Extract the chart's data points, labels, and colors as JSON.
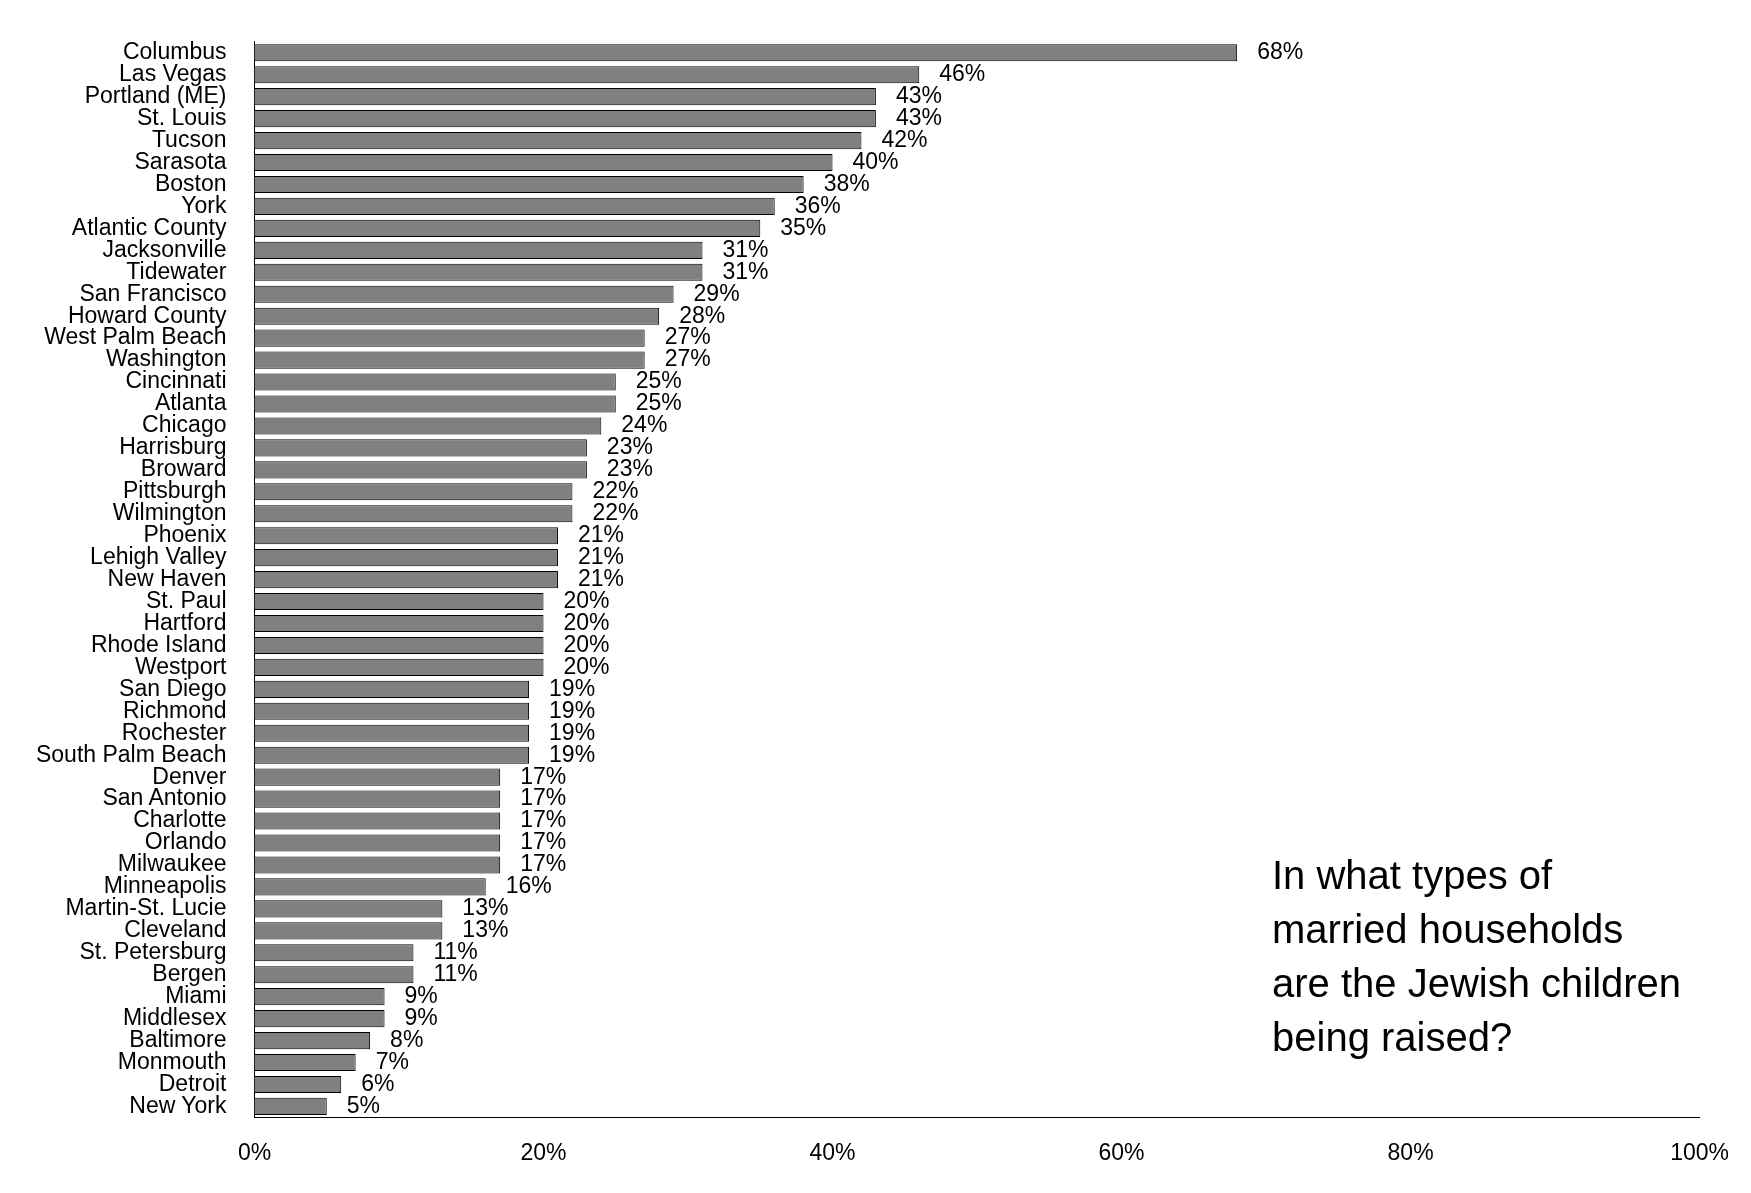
{
  "chart_data": {
    "type": "bar",
    "orientation": "horizontal",
    "title": "In what types of married households are the Jewish children being raised?",
    "categories": [
      "Columbus",
      "Las Vegas",
      "Portland (ME)",
      "St. Louis",
      "Tucson",
      "Sarasota",
      "Boston",
      "York",
      "Atlantic County",
      "Jacksonville",
      "Tidewater",
      "San Francisco",
      "Howard County",
      "West Palm Beach",
      "Washington",
      "Cincinnati",
      "Atlanta",
      "Chicago",
      "Harrisburg",
      "Broward",
      "Pittsburgh",
      "Wilmington",
      "Phoenix",
      "Lehigh Valley",
      "New Haven",
      "St. Paul",
      "Hartford",
      "Rhode Island",
      "Westport",
      "San Diego",
      "Richmond",
      "Rochester",
      "South Palm Beach",
      "Denver",
      "San Antonio",
      "Charlotte",
      "Orlando",
      "Milwaukee",
      "Minneapolis",
      "Martin-St. Lucie",
      "Cleveland",
      "St. Petersburg",
      "Bergen",
      "Miami",
      "Middlesex",
      "Baltimore",
      "Monmouth",
      "Detroit",
      "New York"
    ],
    "values": [
      68,
      46,
      43,
      43,
      42,
      40,
      38,
      36,
      35,
      31,
      31,
      29,
      28,
      27,
      27,
      25,
      25,
      24,
      23,
      23,
      22,
      22,
      21,
      21,
      21,
      20,
      20,
      20,
      20,
      19,
      19,
      19,
      19,
      17,
      17,
      17,
      17,
      17,
      16,
      13,
      13,
      11,
      11,
      9,
      9,
      8,
      7,
      6,
      5
    ],
    "value_labels": [
      "68%",
      "46%",
      "43%",
      "43%",
      "42%",
      "40%",
      "38%",
      "36%",
      "35%",
      "31%",
      "31%",
      "29%",
      "28%",
      "27%",
      "27%",
      "25%",
      "25%",
      "24%",
      "23%",
      "23%",
      "22%",
      "22%",
      "21%",
      "21%",
      "21%",
      "20%",
      "20%",
      "20%",
      "20%",
      "19%",
      "19%",
      "19%",
      "19%",
      "17%",
      "17%",
      "17%",
      "17%",
      "17%",
      "16%",
      "13%",
      "13%",
      "11%",
      "11%",
      "9%",
      "9%",
      "8%",
      "7%",
      "6%",
      "5%"
    ],
    "color": "#808080",
    "xlim": [
      0,
      100
    ],
    "xticks": [
      {
        "value": 0,
        "label": "0%"
      },
      {
        "value": 20,
        "label": "20%"
      },
      {
        "value": 40,
        "label": "40%"
      },
      {
        "value": 60,
        "label": "60%"
      },
      {
        "value": 80,
        "label": "80%"
      },
      {
        "value": 100,
        "label": "100%"
      }
    ]
  }
}
